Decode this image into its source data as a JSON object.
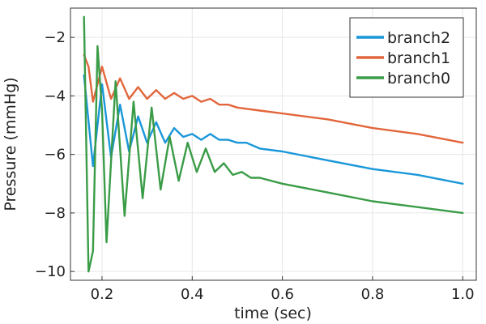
{
  "chart_data": {
    "type": "line",
    "title": "",
    "xlabel": "time (sec)",
    "ylabel": "Pressure (mmHg)",
    "xlim": [
      0.13,
      1.03
    ],
    "ylim": [
      -10.3,
      -1.0
    ],
    "xticks": [
      0.2,
      0.4,
      0.6,
      0.8,
      1.0
    ],
    "xtick_labels": [
      "0.2",
      "0.4",
      "0.6",
      "0.8",
      "1.0"
    ],
    "yticks": [
      -10,
      -8,
      -6,
      -4,
      -2
    ],
    "ytick_labels": [
      "−10",
      "−8",
      "−6",
      "−4",
      "−2"
    ],
    "grid": true,
    "legend_position": "top-right",
    "series": [
      {
        "name": "branch2",
        "color": "#1a97d9",
        "points": [
          [
            0.16,
            -3.3
          ],
          [
            0.18,
            -6.4
          ],
          [
            0.2,
            -3.6
          ],
          [
            0.22,
            -6.1
          ],
          [
            0.24,
            -4.3
          ],
          [
            0.26,
            -5.9
          ],
          [
            0.28,
            -4.7
          ],
          [
            0.3,
            -5.6
          ],
          [
            0.32,
            -4.9
          ],
          [
            0.34,
            -5.6
          ],
          [
            0.36,
            -5.1
          ],
          [
            0.38,
            -5.4
          ],
          [
            0.4,
            -5.3
          ],
          [
            0.42,
            -5.5
          ],
          [
            0.44,
            -5.3
          ],
          [
            0.46,
            -5.5
          ],
          [
            0.48,
            -5.5
          ],
          [
            0.5,
            -5.6
          ],
          [
            0.52,
            -5.6
          ],
          [
            0.55,
            -5.8
          ],
          [
            0.6,
            -5.9
          ],
          [
            0.7,
            -6.2
          ],
          [
            0.8,
            -6.5
          ],
          [
            0.9,
            -6.7
          ],
          [
            1.0,
            -7.0
          ]
        ]
      },
      {
        "name": "branch1",
        "color": "#e2663c",
        "points": [
          [
            0.16,
            -2.6
          ],
          [
            0.17,
            -3.0
          ],
          [
            0.18,
            -4.2
          ],
          [
            0.2,
            -3.0
          ],
          [
            0.22,
            -4.1
          ],
          [
            0.24,
            -3.4
          ],
          [
            0.26,
            -4.1
          ],
          [
            0.28,
            -3.7
          ],
          [
            0.3,
            -4.1
          ],
          [
            0.32,
            -3.8
          ],
          [
            0.34,
            -4.1
          ],
          [
            0.36,
            -3.9
          ],
          [
            0.38,
            -4.1
          ],
          [
            0.4,
            -4.0
          ],
          [
            0.42,
            -4.2
          ],
          [
            0.44,
            -4.1
          ],
          [
            0.46,
            -4.3
          ],
          [
            0.48,
            -4.3
          ],
          [
            0.5,
            -4.4
          ],
          [
            0.55,
            -4.5
          ],
          [
            0.6,
            -4.6
          ],
          [
            0.7,
            -4.8
          ],
          [
            0.8,
            -5.1
          ],
          [
            0.9,
            -5.3
          ],
          [
            1.0,
            -5.6
          ]
        ]
      },
      {
        "name": "branch0",
        "color": "#3a9c47",
        "points": [
          [
            0.16,
            -1.3
          ],
          [
            0.17,
            -10.0
          ],
          [
            0.18,
            -9.3
          ],
          [
            0.19,
            -2.3
          ],
          [
            0.2,
            -4.5
          ],
          [
            0.21,
            -9.0
          ],
          [
            0.23,
            -3.5
          ],
          [
            0.25,
            -8.1
          ],
          [
            0.27,
            -4.2
          ],
          [
            0.29,
            -7.5
          ],
          [
            0.31,
            -4.4
          ],
          [
            0.33,
            -7.2
          ],
          [
            0.35,
            -5.4
          ],
          [
            0.37,
            -6.9
          ],
          [
            0.39,
            -5.6
          ],
          [
            0.41,
            -6.6
          ],
          [
            0.43,
            -5.8
          ],
          [
            0.45,
            -6.6
          ],
          [
            0.47,
            -6.3
          ],
          [
            0.49,
            -6.7
          ],
          [
            0.51,
            -6.6
          ],
          [
            0.53,
            -6.8
          ],
          [
            0.55,
            -6.8
          ],
          [
            0.6,
            -7.0
          ],
          [
            0.7,
            -7.3
          ],
          [
            0.8,
            -7.6
          ],
          [
            0.9,
            -7.8
          ],
          [
            1.0,
            -8.0
          ]
        ]
      }
    ]
  }
}
